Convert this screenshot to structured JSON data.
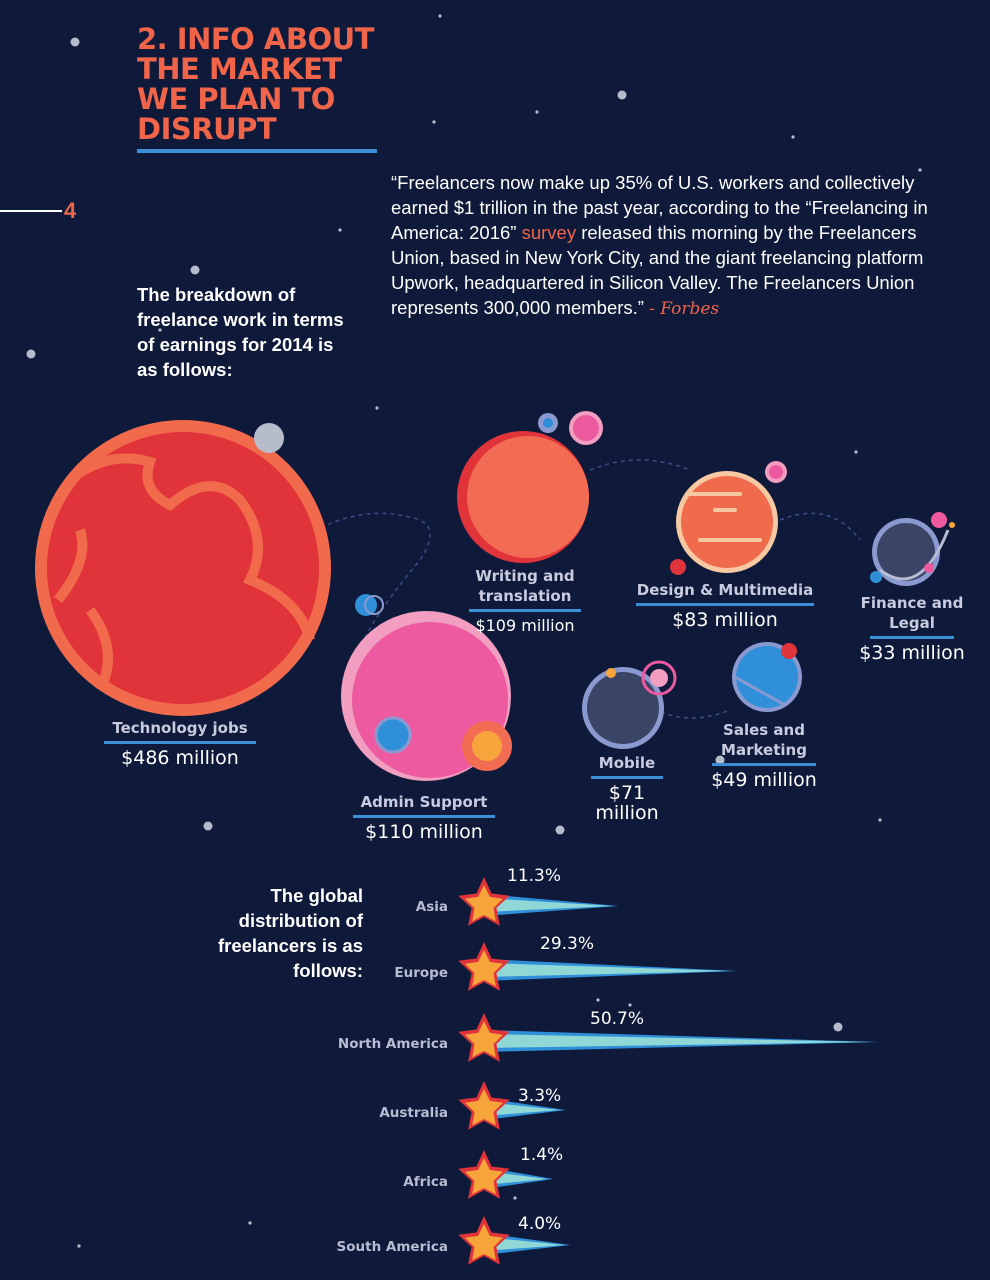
{
  "header": {
    "title_lines": [
      "2. INFO ABOUT",
      "THE MARKET",
      "WE PLAN TO",
      "DISRUPT"
    ],
    "page_number": "4"
  },
  "quote": {
    "text_before": "“Freelancers now make up 35% of U.S. workers and collectively earned $1 trillion in the past year, according to the “Freelancing in America: 2016” ",
    "highlight": "survey",
    "text_after": " released this morning by the Freelancers Union, based in New York City, and the giant freelancing platform Upwork, headquartered in Silicon Valley. The Freelancers Union represents 300,000 members.” ",
    "source": "- Forbes"
  },
  "earnings": {
    "intro": "The breakdown of freelance work in terms of earnings for 2014 is as follows:",
    "categories": [
      {
        "name": "Technology jobs",
        "value": "$486 million",
        "amount_millions": 486
      },
      {
        "name": "Admin Support",
        "value": "$110 million",
        "amount_millions": 110
      },
      {
        "name": "Writing and translation",
        "value": "$109 million",
        "amount_millions": 109
      },
      {
        "name": "Design & Multimedia",
        "value": "$83 million",
        "amount_millions": 83
      },
      {
        "name": "Mobile",
        "value": "$71 million",
        "amount_millions": 71
      },
      {
        "name": "Sales and Marketing",
        "value": "$49 million",
        "amount_millions": 49
      },
      {
        "name": "Finance and Legal",
        "value": "$33 million",
        "amount_millions": 33
      }
    ]
  },
  "distribution": {
    "intro": "The global distribution of freelancers is as follows:",
    "regions": [
      {
        "name": "Asia",
        "label": "11.3%",
        "percent": 11.3
      },
      {
        "name": "Europe",
        "label": "29.3%",
        "percent": 29.3
      },
      {
        "name": "North America",
        "label": "50.7%",
        "percent": 50.7
      },
      {
        "name": "Australia",
        "label": "3.3%",
        "percent": 3.3
      },
      {
        "name": "Africa",
        "label": "1.4%",
        "percent": 1.4
      },
      {
        "name": "South America",
        "label": "4.0%",
        "percent": 4.0
      }
    ]
  },
  "colors": {
    "background": "#0f1a3a",
    "accent": "#f0644a",
    "rule": "#3a8fd6",
    "tech_planet": "#e0343a",
    "admin_planet": "#ee5aa0",
    "writing_planet": "#f26c54",
    "design_planet": "#f06a4c",
    "mobile_planet": "#3a4566",
    "sales_planet": "#2f8fd8",
    "finance_planet": "#3a4566",
    "star": "#f7a43a",
    "trail": "#8fd8d6"
  }
}
